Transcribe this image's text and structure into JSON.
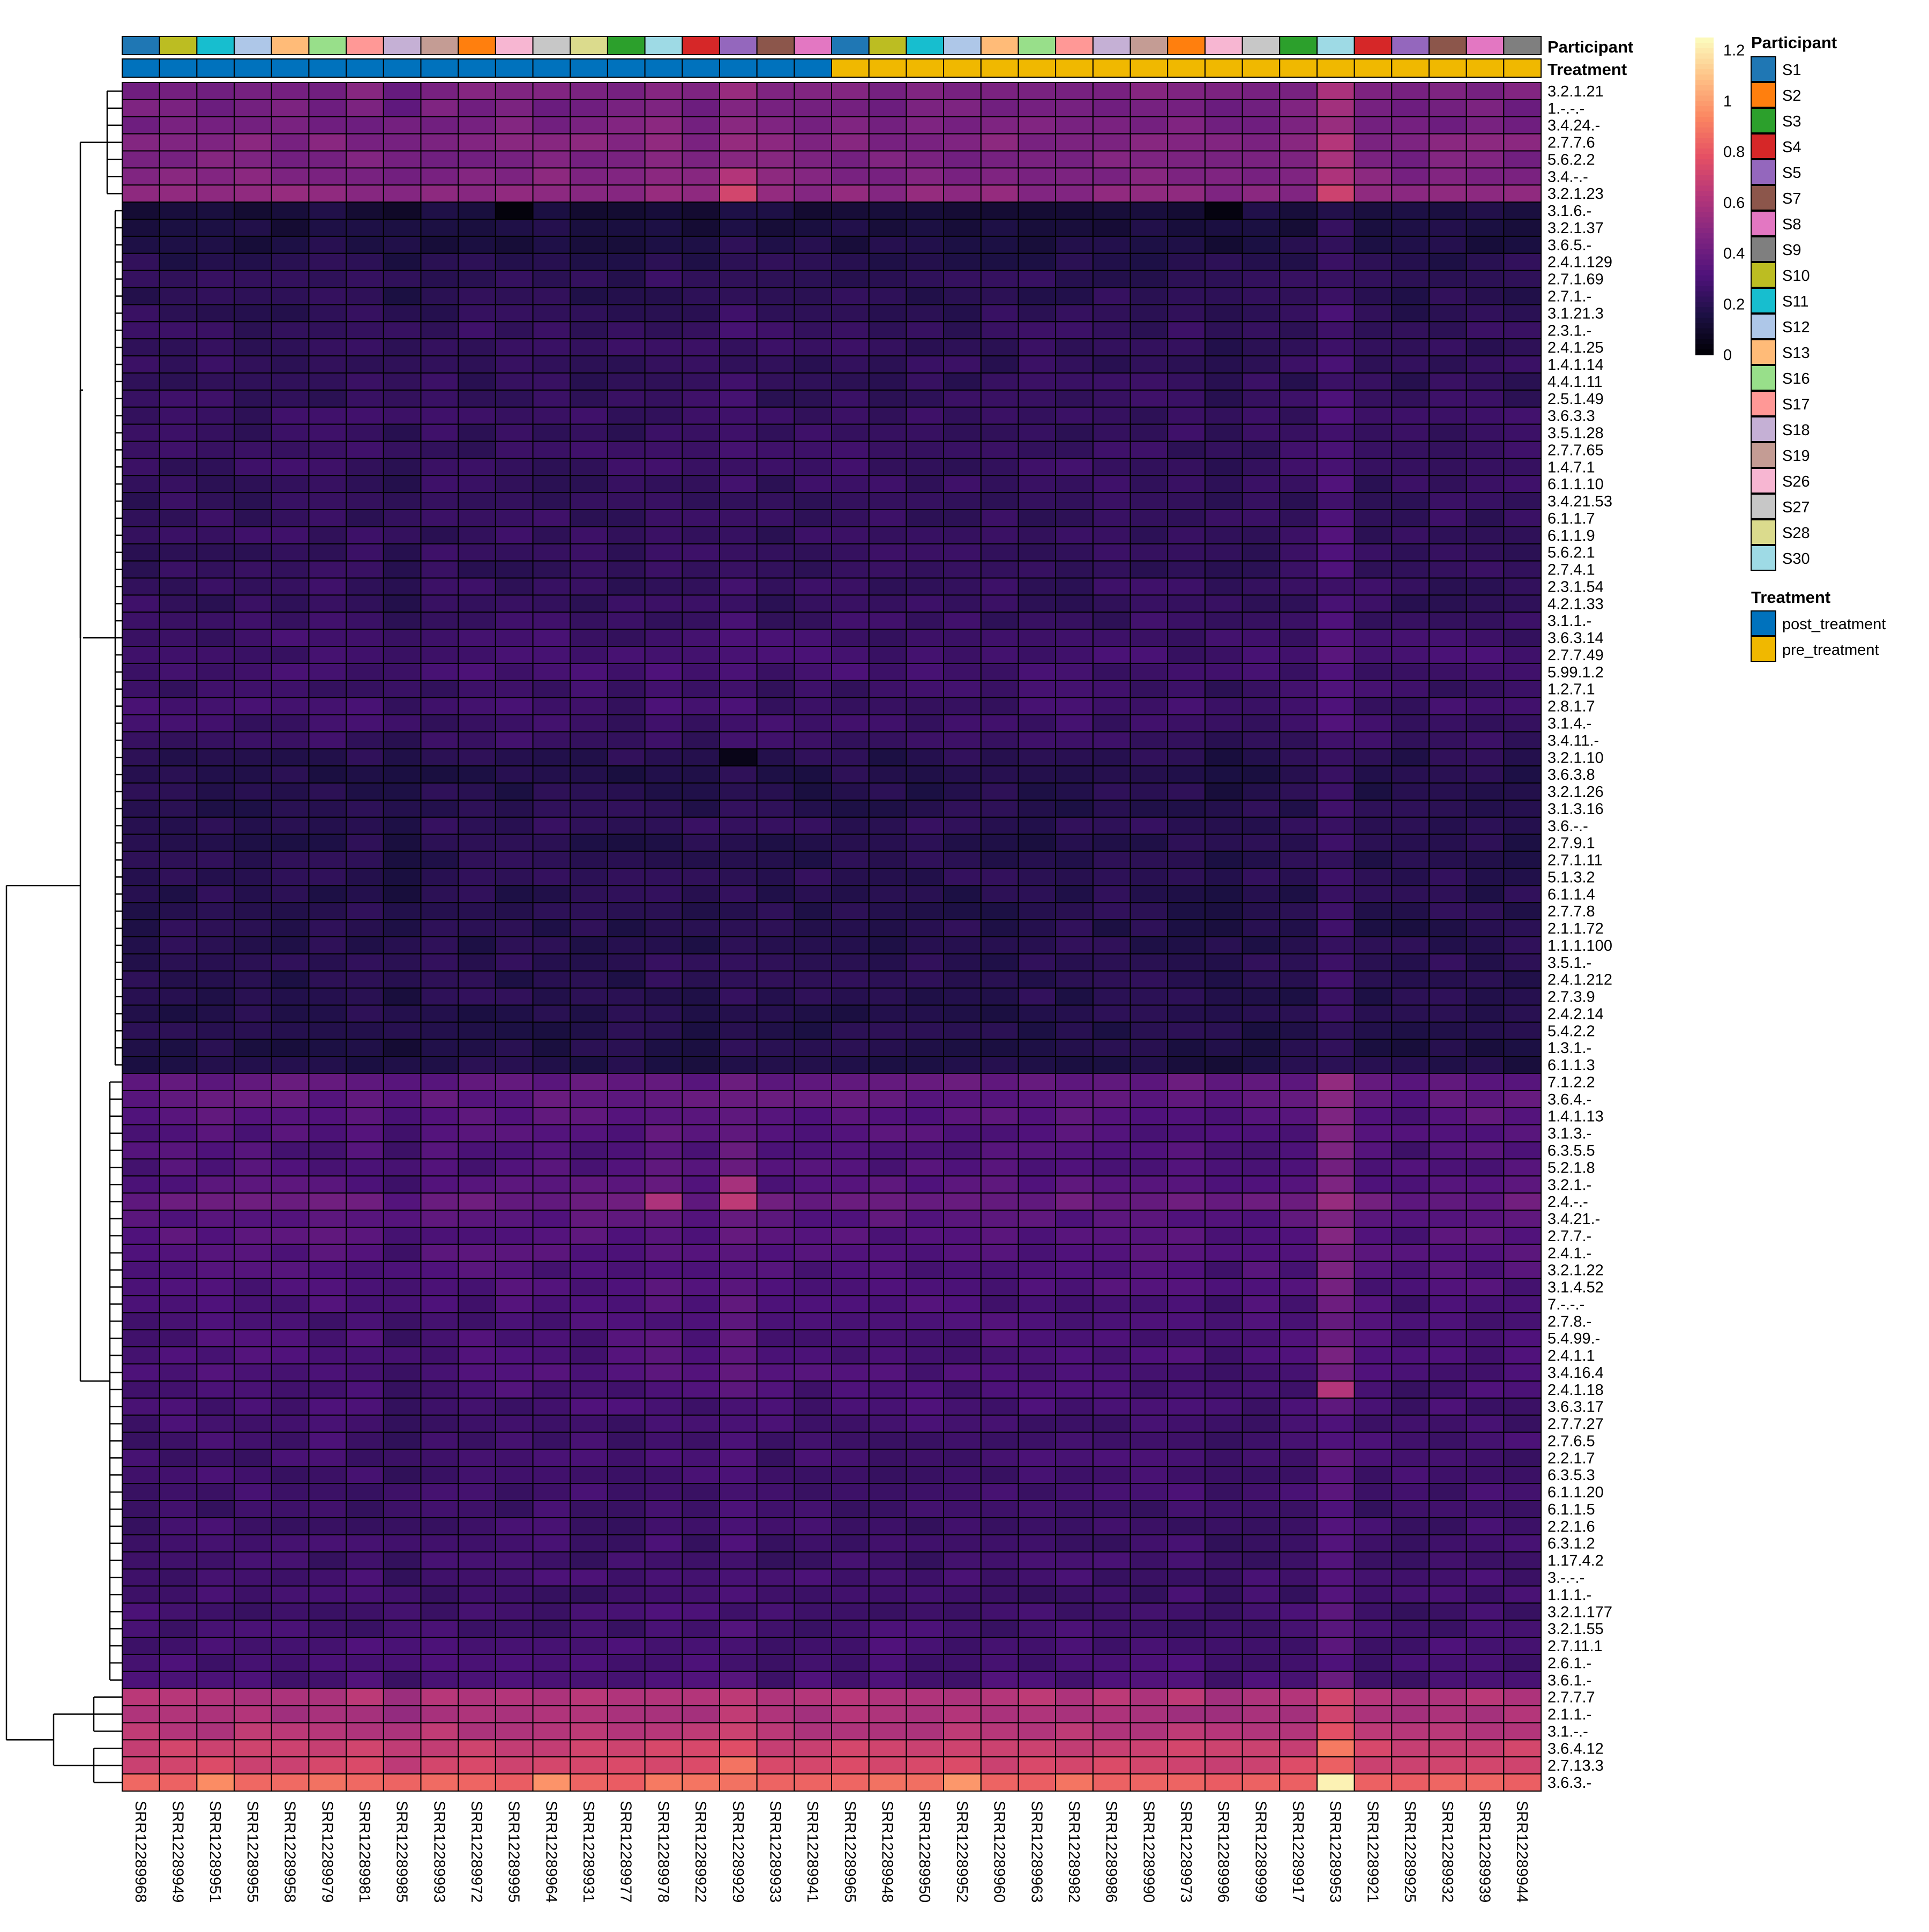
{
  "chart_data": {
    "type": "heatmap",
    "title": "",
    "colorbar": {
      "ticks": [
        0,
        0.2,
        0.4,
        0.6,
        0.8,
        1,
        1.2
      ],
      "tick_labels": [
        "0",
        "0.2",
        "0.4",
        "0.6",
        "0.8",
        "1",
        "1.2"
      ],
      "range": [
        0,
        1.25
      ],
      "palette": [
        "#000004",
        "#1c1044",
        "#4f127b",
        "#812581",
        "#b5367a",
        "#e55064",
        "#fb8761",
        "#fec287",
        "#fcfdbf"
      ]
    },
    "columns": [
      "SRR12289968",
      "SRR12289949",
      "SRR12289951",
      "SRR12289955",
      "SRR12289958",
      "SRR12289979",
      "SRR12289981",
      "SRR12289985",
      "SRR12289993",
      "SRR12289972",
      "SRR12289995",
      "SRR12289964",
      "SRR12289931",
      "SRR12289977",
      "SRR12289978",
      "SRR12289922",
      "SRR12289929",
      "SRR12289933",
      "SRR12289941",
      "SRR12289965",
      "SRR12289948",
      "SRR12289950",
      "SRR12289952",
      "SRR12289960",
      "SRR12289963",
      "SRR12289982",
      "SRR12289986",
      "SRR12289990",
      "SRR12289973",
      "SRR12289996",
      "SRR12289999",
      "SRR12289917",
      "SRR12289953",
      "SRR12289921",
      "SRR12289925",
      "SRR12289932",
      "SRR12289939",
      "SRR12289944"
    ],
    "column_annotations": {
      "participant": [
        "S1",
        "S10",
        "S11",
        "S12",
        "S13",
        "S16",
        "S17",
        "S18",
        "S19",
        "S2",
        "S26",
        "S27",
        "S28",
        "S3",
        "S30",
        "S4",
        "S5",
        "S7",
        "S8",
        "S1",
        "S10",
        "S11",
        "S12",
        "S13",
        "S16",
        "S17",
        "S18",
        "S19",
        "S2",
        "S26",
        "S27",
        "S3",
        "S30",
        "S4",
        "S5",
        "S7",
        "S8",
        "S9"
      ],
      "treatment": [
        "post_treatment",
        "post_treatment",
        "post_treatment",
        "post_treatment",
        "post_treatment",
        "post_treatment",
        "post_treatment",
        "post_treatment",
        "post_treatment",
        "post_treatment",
        "post_treatment",
        "post_treatment",
        "post_treatment",
        "post_treatment",
        "post_treatment",
        "post_treatment",
        "post_treatment",
        "post_treatment",
        "post_treatment",
        "pre_treatment",
        "pre_treatment",
        "pre_treatment",
        "pre_treatment",
        "pre_treatment",
        "pre_treatment",
        "pre_treatment",
        "pre_treatment",
        "pre_treatment",
        "pre_treatment",
        "pre_treatment",
        "pre_treatment",
        "pre_treatment",
        "pre_treatment",
        "pre_treatment",
        "pre_treatment",
        "pre_treatment",
        "pre_treatment",
        "pre_treatment"
      ]
    },
    "annotation_titles": {
      "participant": "Participant",
      "treatment": "Treatment"
    },
    "legend": {
      "participant_title": "Participant",
      "participants": [
        {
          "name": "S1",
          "color": "#1f77b4"
        },
        {
          "name": "S2",
          "color": "#ff7f0e"
        },
        {
          "name": "S3",
          "color": "#2ca02c"
        },
        {
          "name": "S4",
          "color": "#d62728"
        },
        {
          "name": "S5",
          "color": "#9467bd"
        },
        {
          "name": "S7",
          "color": "#8c564b"
        },
        {
          "name": "S8",
          "color": "#e377c2"
        },
        {
          "name": "S9",
          "color": "#7f7f7f"
        },
        {
          "name": "S10",
          "color": "#bcbd22"
        },
        {
          "name": "S11",
          "color": "#17becf"
        },
        {
          "name": "S12",
          "color": "#aec7e8"
        },
        {
          "name": "S13",
          "color": "#ffbb78"
        },
        {
          "name": "S16",
          "color": "#98df8a"
        },
        {
          "name": "S17",
          "color": "#ff9896"
        },
        {
          "name": "S18",
          "color": "#c5b0d5"
        },
        {
          "name": "S19",
          "color": "#c49c94"
        },
        {
          "name": "S26",
          "color": "#f7b6d2"
        },
        {
          "name": "S27",
          "color": "#c7c7c7"
        },
        {
          "name": "S28",
          "color": "#dbdb8d"
        },
        {
          "name": "S30",
          "color": "#9edae5"
        }
      ],
      "treatment_title": "Treatment",
      "treatments": [
        {
          "name": "post_treatment",
          "color": "#0072bd"
        },
        {
          "name": "pre_treatment",
          "color": "#f0b800"
        }
      ]
    },
    "rows": [
      {
        "label": "3.2.1.21",
        "base": 0.45
      },
      {
        "label": "1.-.-.-",
        "base": 0.43
      },
      {
        "label": "3.4.24.-",
        "base": 0.44
      },
      {
        "label": "2.7.7.6",
        "base": 0.47
      },
      {
        "label": "5.6.2.2",
        "base": 0.45
      },
      {
        "label": "3.4.-.-",
        "base": 0.47
      },
      {
        "label": "3.2.1.23",
        "base": 0.5
      },
      {
        "label": "3.1.6.-",
        "base": 0.14
      },
      {
        "label": "3.2.1.37",
        "base": 0.15
      },
      {
        "label": "3.6.5.-",
        "base": 0.16
      },
      {
        "label": "2.4.1.129",
        "base": 0.19
      },
      {
        "label": "2.7.1.69",
        "base": 0.21
      },
      {
        "label": "2.7.1.-",
        "base": 0.2
      },
      {
        "label": "3.1.21.3",
        "base": 0.21
      },
      {
        "label": "2.3.1.-",
        "base": 0.23
      },
      {
        "label": "2.4.1.25",
        "base": 0.22
      },
      {
        "label": "1.4.1.14",
        "base": 0.22
      },
      {
        "label": "4.4.1.11",
        "base": 0.22
      },
      {
        "label": "2.5.1.49",
        "base": 0.23
      },
      {
        "label": "3.6.3.3",
        "base": 0.24
      },
      {
        "label": "3.5.1.28",
        "base": 0.23
      },
      {
        "label": "2.7.7.65",
        "base": 0.24
      },
      {
        "label": "1.4.7.1",
        "base": 0.24
      },
      {
        "label": "6.1.1.10",
        "base": 0.23
      },
      {
        "label": "3.4.21.53",
        "base": 0.22
      },
      {
        "label": "6.1.1.7",
        "base": 0.23
      },
      {
        "label": "6.1.1.9",
        "base": 0.23
      },
      {
        "label": "5.6.2.1",
        "base": 0.23
      },
      {
        "label": "2.7.4.1",
        "base": 0.22
      },
      {
        "label": "2.3.1.54",
        "base": 0.23
      },
      {
        "label": "4.2.1.33",
        "base": 0.23
      },
      {
        "label": "3.1.1.-",
        "base": 0.24
      },
      {
        "label": "3.6.3.14",
        "base": 0.26
      },
      {
        "label": "2.7.7.49",
        "base": 0.27
      },
      {
        "label": "5.99.1.2",
        "base": 0.27
      },
      {
        "label": "1.2.7.1",
        "base": 0.25
      },
      {
        "label": "2.8.1.7",
        "base": 0.26
      },
      {
        "label": "3.1.4.-",
        "base": 0.25
      },
      {
        "label": "3.4.11.-",
        "base": 0.24
      },
      {
        "label": "3.2.1.10",
        "base": 0.19
      },
      {
        "label": "3.6.3.8",
        "base": 0.18
      },
      {
        "label": "3.2.1.26",
        "base": 0.18
      },
      {
        "label": "3.1.3.16",
        "base": 0.19
      },
      {
        "label": "3.6.-.-",
        "base": 0.21
      },
      {
        "label": "2.7.9.1",
        "base": 0.18
      },
      {
        "label": "2.7.1.11",
        "base": 0.19
      },
      {
        "label": "5.1.3.2",
        "base": 0.2
      },
      {
        "label": "6.1.1.4",
        "base": 0.19
      },
      {
        "label": "2.7.7.8",
        "base": 0.19
      },
      {
        "label": "2.1.1.72",
        "base": 0.19
      },
      {
        "label": "1.1.1.100",
        "base": 0.19
      },
      {
        "label": "3.5.1.-",
        "base": 0.2
      },
      {
        "label": "2.4.1.212",
        "base": 0.19
      },
      {
        "label": "2.7.3.9",
        "base": 0.19
      },
      {
        "label": "2.4.2.14",
        "base": 0.18
      },
      {
        "label": "5.4.2.2",
        "base": 0.18
      },
      {
        "label": "1.3.1.-",
        "base": 0.17
      },
      {
        "label": "6.1.1.3",
        "base": 0.17
      },
      {
        "label": "7.1.2.2",
        "base": 0.37
      },
      {
        "label": "3.6.4.-",
        "base": 0.36
      },
      {
        "label": "1.4.1.13",
        "base": 0.34
      },
      {
        "label": "3.1.3.-",
        "base": 0.32
      },
      {
        "label": "6.3.5.5",
        "base": 0.31
      },
      {
        "label": "5.2.1.8",
        "base": 0.31
      },
      {
        "label": "3.2.1.-",
        "base": 0.33
      },
      {
        "label": "2.4.-.-",
        "base": 0.39
      },
      {
        "label": "3.4.21.-",
        "base": 0.34
      },
      {
        "label": "2.7.7.-",
        "base": 0.33
      },
      {
        "label": "2.4.1.-",
        "base": 0.32
      },
      {
        "label": "3.2.1.22",
        "base": 0.31
      },
      {
        "label": "3.1.4.52",
        "base": 0.31
      },
      {
        "label": "7.-.-.-",
        "base": 0.3
      },
      {
        "label": "2.7.8.-",
        "base": 0.29
      },
      {
        "label": "5.4.99.-",
        "base": 0.3
      },
      {
        "label": "2.4.1.1",
        "base": 0.3
      },
      {
        "label": "3.4.16.4",
        "base": 0.3
      },
      {
        "label": "2.4.1.18",
        "base": 0.29
      },
      {
        "label": "3.6.3.17",
        "base": 0.28
      },
      {
        "label": "2.7.7.27",
        "base": 0.27
      },
      {
        "label": "2.7.6.5",
        "base": 0.27
      },
      {
        "label": "2.2.1.7",
        "base": 0.27
      },
      {
        "label": "6.3.5.3",
        "base": 0.27
      },
      {
        "label": "6.1.1.20",
        "base": 0.27
      },
      {
        "label": "6.1.1.5",
        "base": 0.26
      },
      {
        "label": "2.2.1.6",
        "base": 0.26
      },
      {
        "label": "6.3.1.2",
        "base": 0.26
      },
      {
        "label": "1.17.4.2",
        "base": 0.26
      },
      {
        "label": "3.-.-.-",
        "base": 0.27
      },
      {
        "label": "1.1.1.-",
        "base": 0.26
      },
      {
        "label": "3.2.1.177",
        "base": 0.27
      },
      {
        "label": "3.2.1.55",
        "base": 0.27
      },
      {
        "label": "2.7.11.1",
        "base": 0.28
      },
      {
        "label": "2.6.1.-",
        "base": 0.28
      },
      {
        "label": "3.6.1.-",
        "base": 0.29
      },
      {
        "label": "2.7.7.7",
        "base": 0.62
      },
      {
        "label": "2.1.1.-",
        "base": 0.59
      },
      {
        "label": "3.1.-.-",
        "base": 0.63
      },
      {
        "label": "3.6.4.12",
        "base": 0.7
      },
      {
        "label": "2.7.13.3",
        "base": 0.72
      },
      {
        "label": "3.6.3.-",
        "base": 0.85
      }
    ],
    "highlight_cells": [
      {
        "row": "3.6.3.-",
        "column": "SRR12289953",
        "value": 1.22
      },
      {
        "row": "3.6.3.-",
        "column": "SRR12289952",
        "value": 0.98
      },
      {
        "row": "3.6.3.-",
        "column": "SRR12289951",
        "value": 0.95
      },
      {
        "row": "3.6.3.-",
        "column": "SRR12289964",
        "value": 0.97
      },
      {
        "row": "3.6.4.12",
        "column": "SRR12289953",
        "value": 0.9
      },
      {
        "row": "2.7.13.3",
        "column": "SRR12289929",
        "value": 0.88
      },
      {
        "row": "2.4.-.-",
        "column": "SRR12289929",
        "value": 0.65
      },
      {
        "row": "2.4.-.-",
        "column": "SRR12289978",
        "value": 0.6
      },
      {
        "row": "3.2.1.23",
        "column": "SRR12289929",
        "value": 0.72
      },
      {
        "row": "3.2.1.23",
        "column": "SRR12289953",
        "value": 0.7
      },
      {
        "row": "3.4.-.-",
        "column": "SRR12289929",
        "value": 0.62
      },
      {
        "row": "2.4.1.18",
        "column": "SRR12289953",
        "value": 0.62
      },
      {
        "row": "3.2.1.-",
        "column": "SRR12289929",
        "value": 0.58
      },
      {
        "row": "3.2.1.10",
        "column": "SRR12289929",
        "value": 0.05
      },
      {
        "row": "3.1.6.-",
        "column": "SRR12289995",
        "value": 0.02
      },
      {
        "row": "3.1.6.-",
        "column": "SRR12289996",
        "value": 0.03
      }
    ],
    "column_offsets": {
      "SRR12289953": 0.12,
      "SRR12289985": -0.04,
      "SRR12289929": 0.05,
      "SRR12289978": 0.03,
      "SRR12289996": -0.03,
      "SRR12289925": -0.02
    }
  }
}
